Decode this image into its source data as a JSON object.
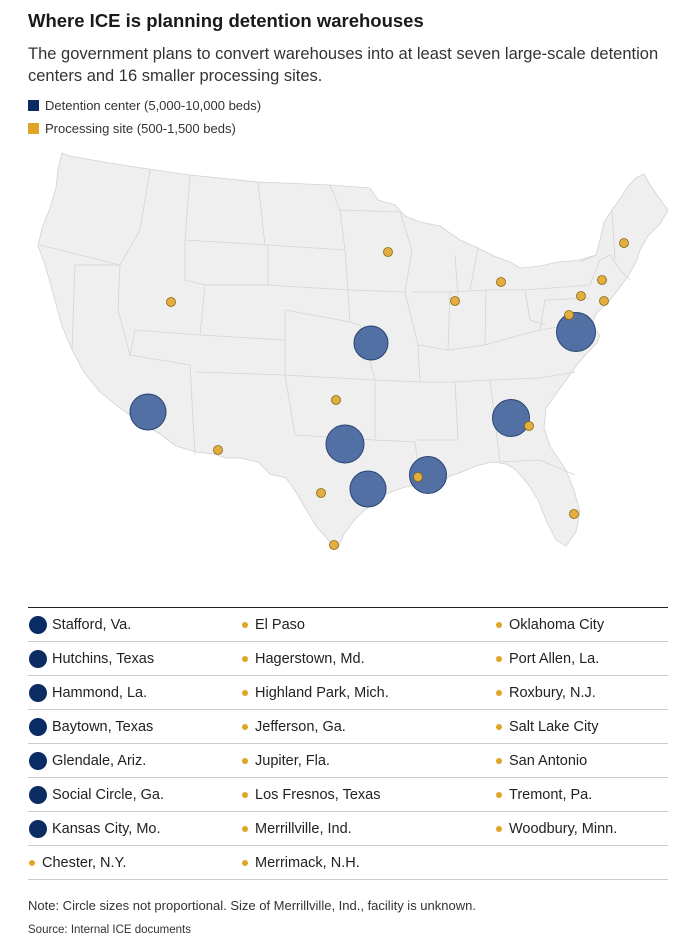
{
  "title": "Where ICE is planning detention warehouses",
  "subtitle": "The government plans to convert warehouses into at least seven large-scale detention centers and 16 smaller processing sites.",
  "legend": [
    {
      "label": "Detention center (5,000-10,000 beds)",
      "color": "#0b2b63"
    },
    {
      "label": "Processing site (500-1,500 beds)",
      "color": "#e0a526"
    }
  ],
  "colors": {
    "detention": "#0b2b63",
    "processing": "#e0a526",
    "land": "#efefef",
    "border": "#d2d2d2"
  },
  "table": {
    "rows": [
      [
        {
          "label": "Stafford, Va.",
          "type": "detention"
        },
        {
          "label": "El Paso",
          "type": "processing"
        },
        {
          "label": "Oklahoma City",
          "type": "processing"
        }
      ],
      [
        {
          "label": "Hutchins, Texas",
          "type": "detention"
        },
        {
          "label": "Hagerstown, Md.",
          "type": "processing"
        },
        {
          "label": "Port Allen, La.",
          "type": "processing"
        }
      ],
      [
        {
          "label": "Hammond, La.",
          "type": "detention"
        },
        {
          "label": "Highland Park, Mich.",
          "type": "processing"
        },
        {
          "label": "Roxbury, N.J.",
          "type": "processing"
        }
      ],
      [
        {
          "label": "Baytown, Texas",
          "type": "detention"
        },
        {
          "label": "Jefferson, Ga.",
          "type": "processing"
        },
        {
          "label": "Salt Lake City",
          "type": "processing"
        }
      ],
      [
        {
          "label": "Glendale, Ariz.",
          "type": "detention"
        },
        {
          "label": "Jupiter, Fla.",
          "type": "processing"
        },
        {
          "label": "San Antonio",
          "type": "processing"
        }
      ],
      [
        {
          "label": "Social Circle, Ga.",
          "type": "detention"
        },
        {
          "label": "Los Fresnos, Texas",
          "type": "processing"
        },
        {
          "label": "Tremont, Pa.",
          "type": "processing"
        }
      ],
      [
        {
          "label": "Kansas City, Mo.",
          "type": "detention"
        },
        {
          "label": "Merrillville, Ind.",
          "type": "processing"
        },
        {
          "label": "Woodbury, Minn.",
          "type": "processing"
        }
      ],
      [
        {
          "label": "Chester, N.Y.",
          "type": "processing"
        },
        {
          "label": "Merrimack, N.H.",
          "type": "processing"
        },
        null
      ]
    ]
  },
  "note": "Note: Circle sizes not proportional. Size of Merrillville, Ind., facility is unknown.",
  "source": "Source: Internal ICE documents"
}
